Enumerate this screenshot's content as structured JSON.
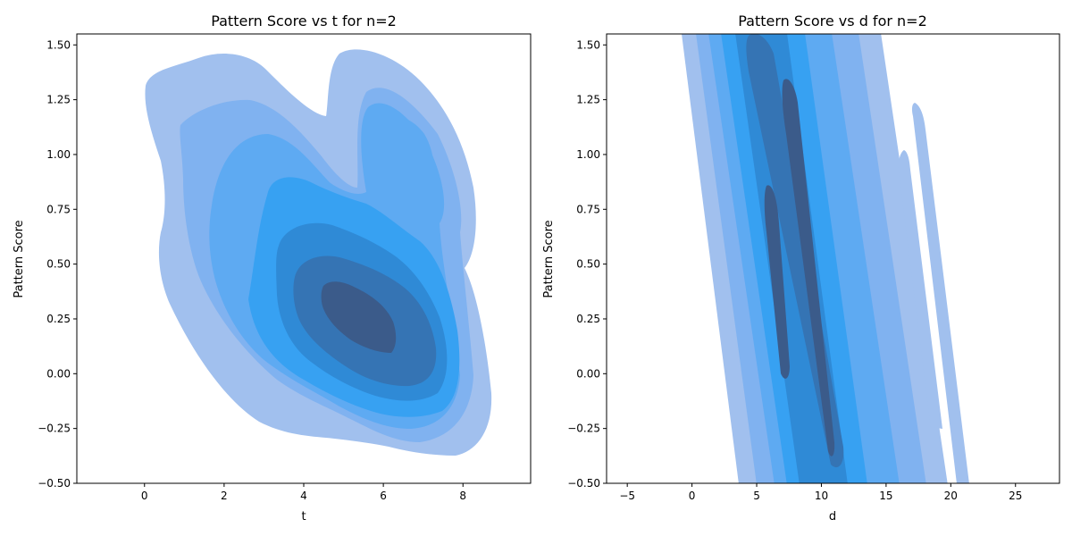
{
  "chart_data": [
    {
      "type": "contour",
      "title": "Pattern Score vs t for n=2",
      "xlabel": "t",
      "ylabel": "Pattern Score",
      "xlim": [
        -1.7,
        9.7
      ],
      "ylim": [
        -0.5,
        1.55
      ],
      "xticks": [
        0,
        2,
        4,
        6,
        8
      ],
      "xtick_labels": [
        "0",
        "2",
        "4",
        "6",
        "8"
      ],
      "yticks": [
        -0.5,
        -0.25,
        0.0,
        0.25,
        0.5,
        0.75,
        1.0,
        1.25,
        1.5
      ],
      "ytick_labels": [
        "−0.50",
        "−0.25",
        "0.00",
        "0.25",
        "0.50",
        "0.75",
        "1.00",
        "1.25",
        "1.50"
      ],
      "grid": false,
      "legend": "none",
      "density": "kernel density estimate of (t, Pattern Score), filled contours",
      "level_colors": [
        "#a1c0ee",
        "#80b2f0",
        "#5eaaf2",
        "#37a1f2",
        "#2f8ad6",
        "#3574b4",
        "#3b5b8a"
      ],
      "peak": {
        "x": 5.3,
        "y": 0.2
      },
      "secondary_peak": {
        "x": 6.6,
        "y": 1.0
      }
    },
    {
      "type": "contour",
      "title": "Pattern Score vs d for n=2",
      "xlabel": "d",
      "ylabel": "Pattern Score",
      "xlim": [
        -6.6,
        28.4
      ],
      "ylim": [
        -0.5,
        1.55
      ],
      "xticks": [
        -5,
        0,
        5,
        10,
        15,
        20,
        25
      ],
      "xtick_labels": [
        "−5",
        "0",
        "5",
        "10",
        "15",
        "20",
        "25"
      ],
      "yticks": [
        -0.5,
        -0.25,
        0.0,
        0.25,
        0.5,
        0.75,
        1.0,
        1.25,
        1.5
      ],
      "ytick_labels": [
        "−0.50",
        "−0.25",
        "0.00",
        "0.25",
        "0.50",
        "0.75",
        "1.00",
        "1.25",
        "1.50"
      ],
      "grid": false,
      "legend": "none",
      "density": "kernel density estimate of (d, Pattern Score), filled contours in diagonal bands",
      "level_colors": [
        "#a1c0ee",
        "#80b2f0",
        "#5eaaf2",
        "#37a1f2",
        "#2f8ad6",
        "#3574b4",
        "#3b5b8a"
      ],
      "band_slope": -0.42,
      "peak": {
        "x": 8.8,
        "y": 0.5
      }
    }
  ]
}
